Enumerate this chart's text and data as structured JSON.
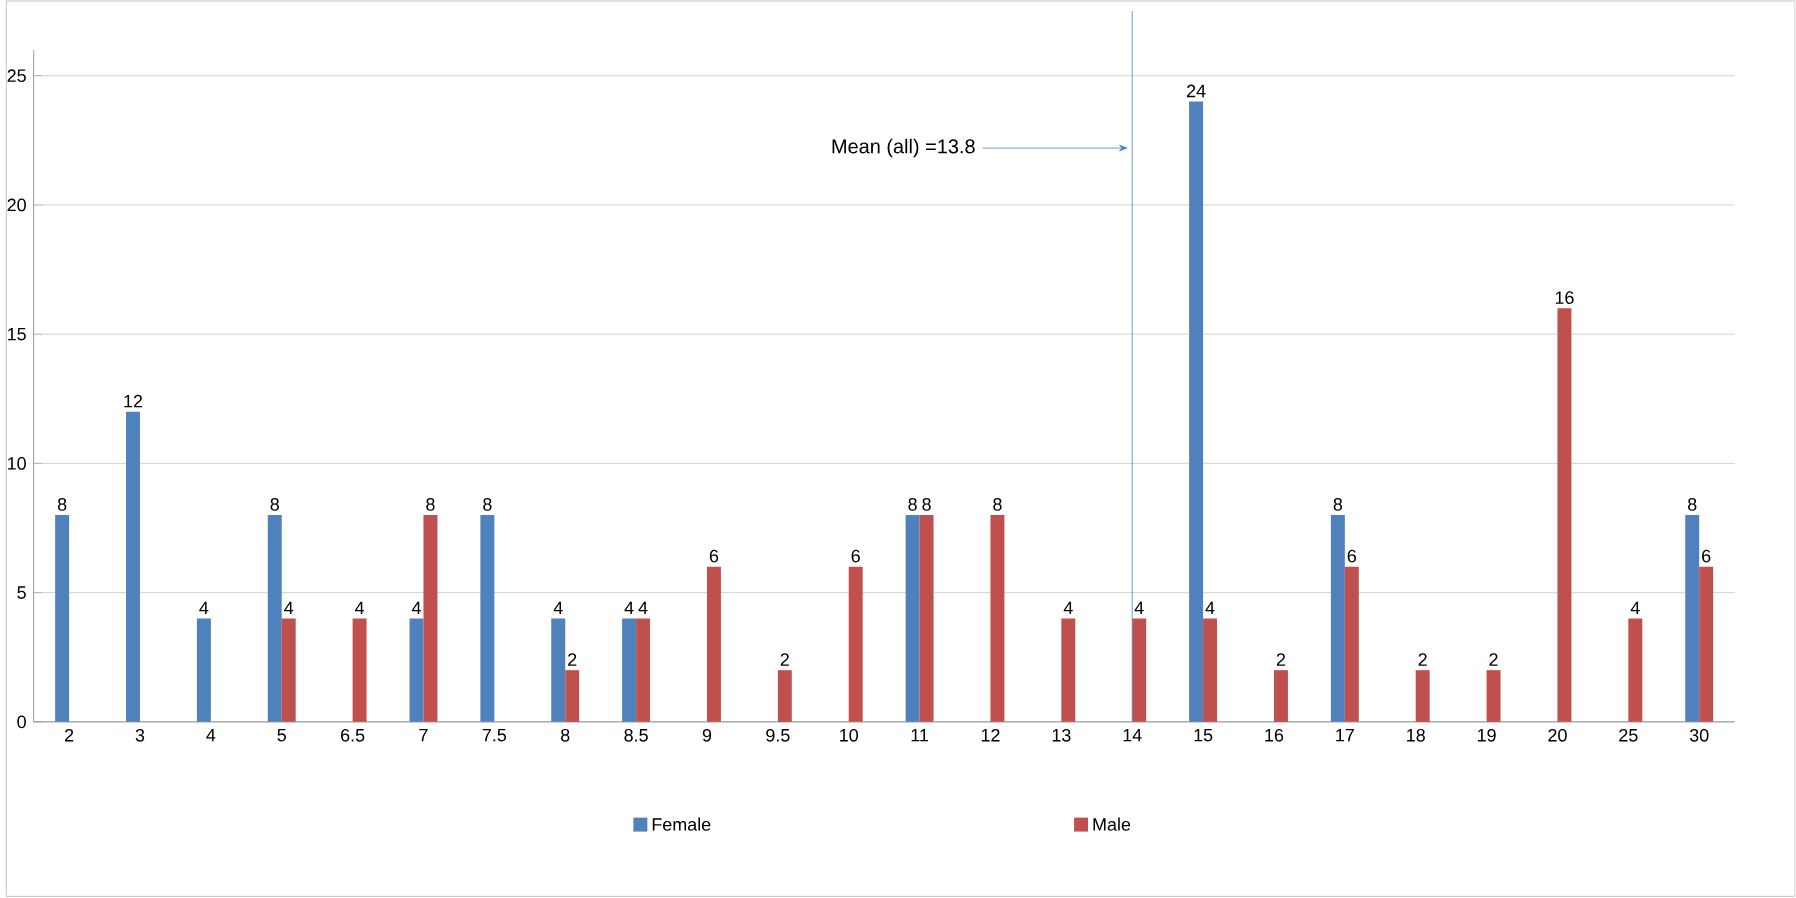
{
  "chart_data": {
    "type": "bar",
    "categories": [
      "2",
      "3",
      "4",
      "5",
      "6.5",
      "7",
      "7.5",
      "8",
      "8.5",
      "9",
      "9.5",
      "10",
      "11",
      "12",
      "13",
      "14",
      "15",
      "16",
      "17",
      "18",
      "19",
      "20",
      "25",
      "30"
    ],
    "series": [
      {
        "name": "Female",
        "color": "#4f81bd",
        "values": [
          8,
          12,
          4,
          8,
          null,
          4,
          8,
          4,
          4,
          null,
          null,
          null,
          8,
          null,
          null,
          null,
          24,
          null,
          8,
          null,
          null,
          null,
          null,
          8
        ]
      },
      {
        "name": "Male",
        "color": "#c0504d",
        "values": [
          null,
          null,
          null,
          4,
          4,
          8,
          null,
          2,
          4,
          6,
          2,
          6,
          8,
          8,
          4,
          4,
          4,
          2,
          6,
          2,
          2,
          16,
          4,
          6
        ]
      }
    ],
    "ylim": [
      0,
      26
    ],
    "yticks": [
      0,
      5,
      10,
      15,
      20,
      25
    ],
    "grid": "y",
    "legend": "bottom",
    "data_labels": true,
    "ref_lines": [
      {
        "axis": "x",
        "value": "14",
        "label": "Mean (all) =13.8",
        "color": "#4f81bd"
      }
    ]
  }
}
